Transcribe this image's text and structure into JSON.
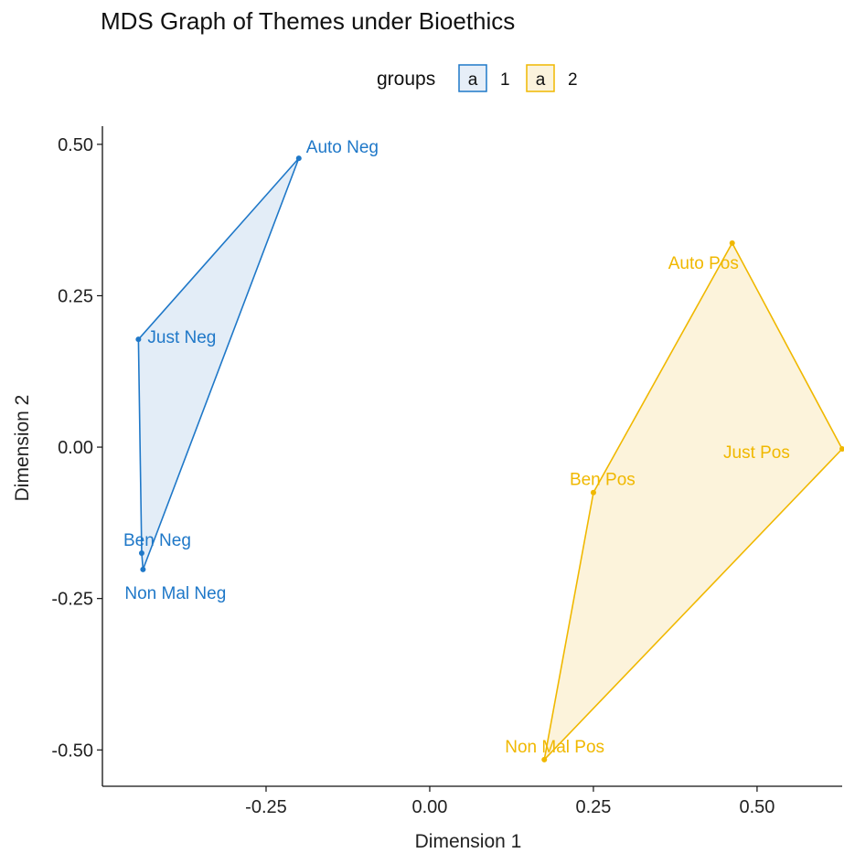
{
  "chart_data": {
    "type": "scatter",
    "title": "MDS Graph of Themes under Bioethics",
    "xlabel": "Dimension 1",
    "ylabel": "Dimension 2",
    "xlim": [
      -0.5,
      0.63
    ],
    "ylim": [
      -0.56,
      0.53
    ],
    "x_ticks": [
      -0.25,
      0.0,
      0.25,
      0.5
    ],
    "x_tick_labels": [
      "-0.25",
      "0.00",
      "0.25",
      "0.50"
    ],
    "y_ticks": [
      0.5,
      0.25,
      0.0,
      -0.25,
      -0.5
    ],
    "y_tick_labels": [
      "0.50",
      "0.25",
      "0.00",
      "-0.25",
      "-0.50"
    ],
    "grid": false,
    "legend": {
      "title": "groups",
      "position": "top",
      "entries": [
        {
          "label": "1",
          "key_glyph": "a",
          "color": "#1f78c8"
        },
        {
          "label": "2",
          "key_glyph": "a",
          "color": "#f0b800"
        }
      ]
    },
    "series": [
      {
        "name": "1",
        "color": "#1f78c8",
        "fill": "#dce9f5",
        "hull": [
          "Auto Neg",
          "Just Neg",
          "Ben Neg",
          "Non Mal Neg"
        ],
        "points": [
          {
            "label": "Auto Neg",
            "x": -0.2,
            "y": 0.477
          },
          {
            "label": "Just Neg",
            "x": -0.445,
            "y": 0.178
          },
          {
            "label": "Ben Neg",
            "x": -0.44,
            "y": -0.175
          },
          {
            "label": "Non Mal Neg",
            "x": -0.438,
            "y": -0.202
          }
        ]
      },
      {
        "name": "2",
        "color": "#f0b800",
        "fill": "#fbf0d2",
        "hull": [
          "Auto Pos",
          "Just Pos",
          "Non Mal Pos",
          "Ben Pos"
        ],
        "points": [
          {
            "label": "Auto Pos",
            "x": 0.462,
            "y": 0.337
          },
          {
            "label": "Just Pos",
            "x": 0.63,
            "y": -0.003
          },
          {
            "label": "Ben Pos",
            "x": 0.25,
            "y": -0.075
          },
          {
            "label": "Non Mal Pos",
            "x": 0.175,
            "y": -0.516
          }
        ]
      }
    ]
  }
}
